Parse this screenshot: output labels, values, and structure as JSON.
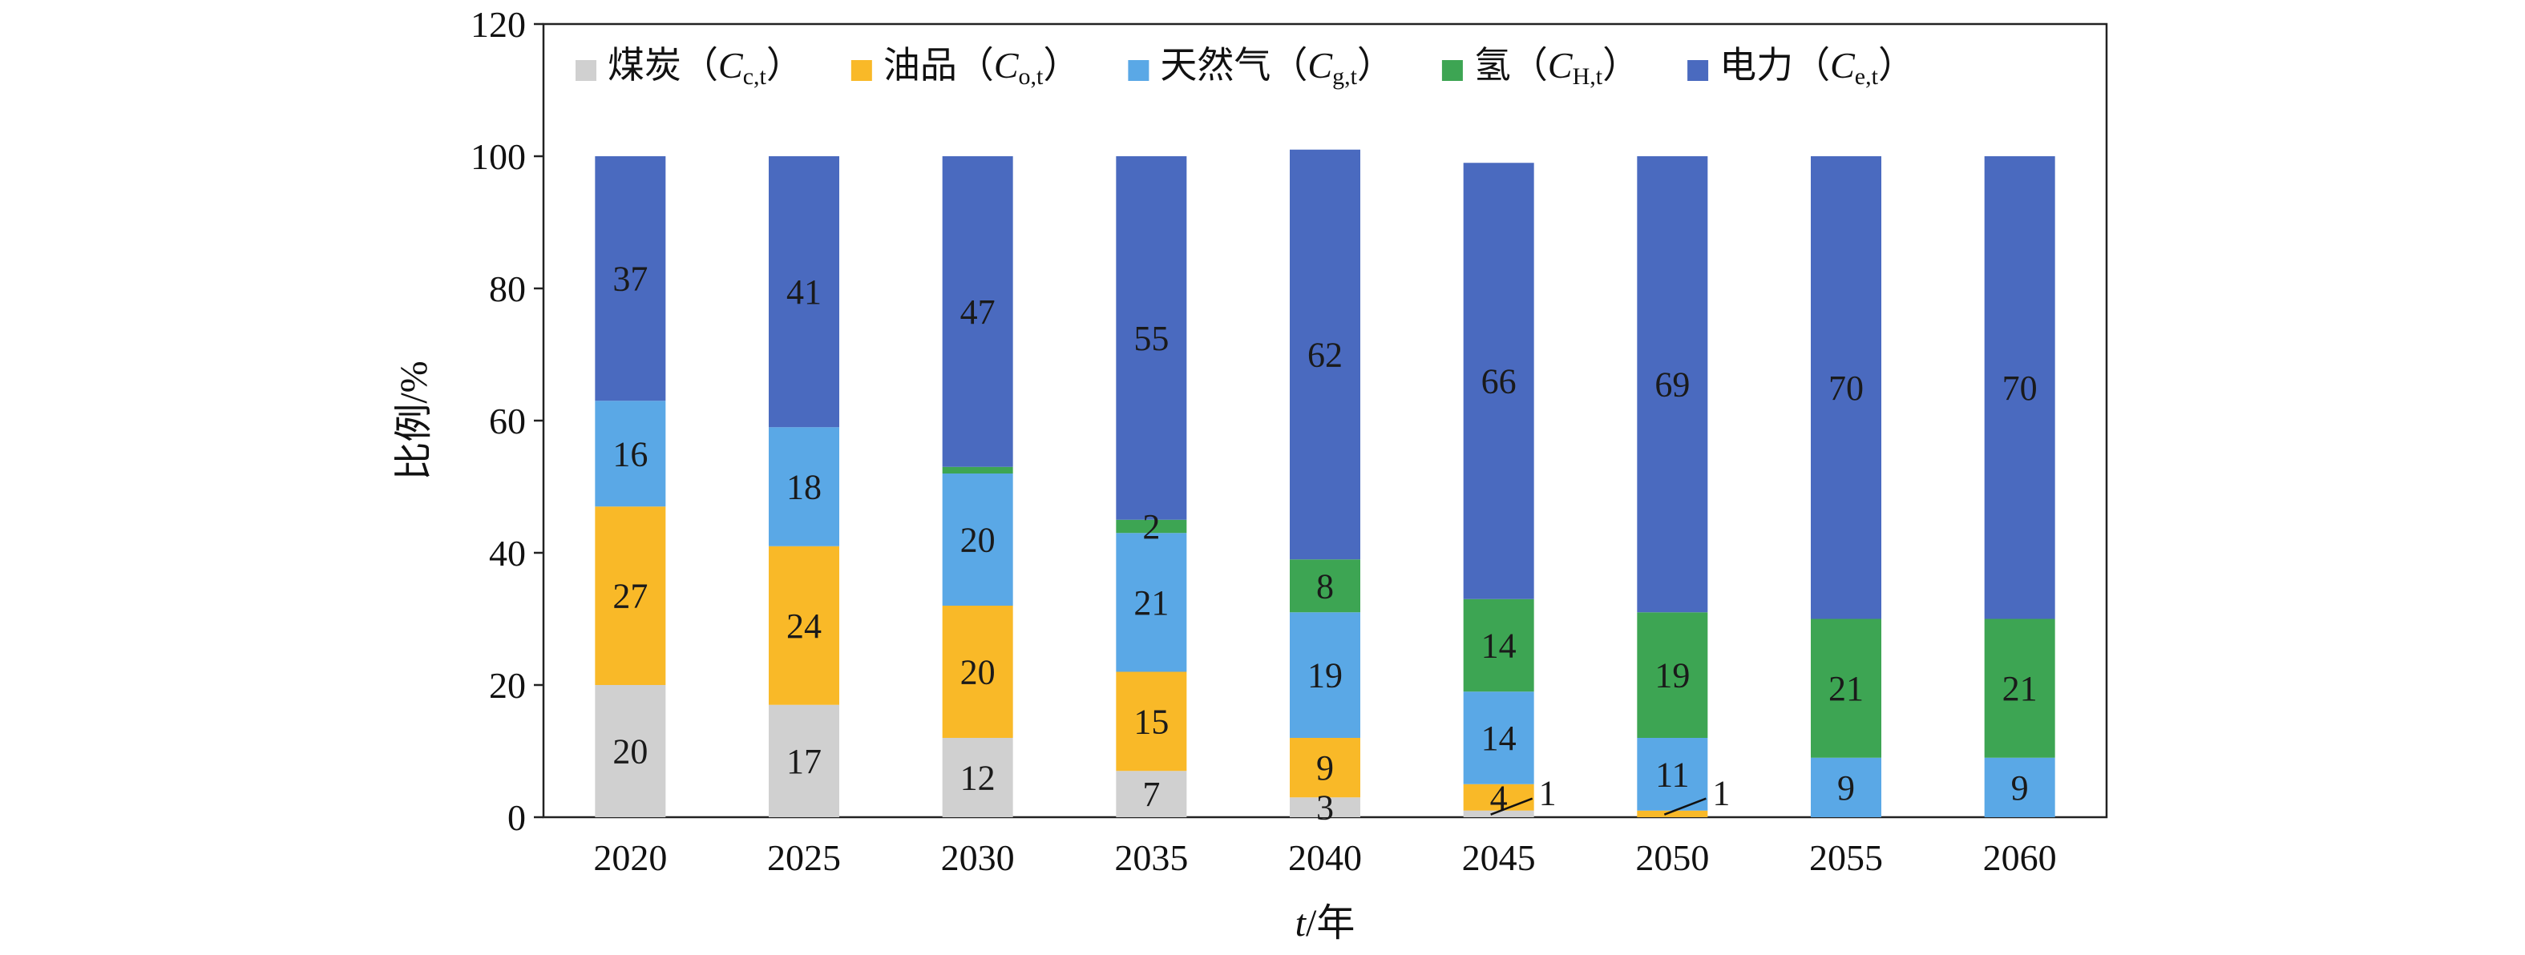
{
  "chart_data": {
    "type": "bar",
    "stacked": true,
    "categories": [
      "2020",
      "2025",
      "2030",
      "2035",
      "2040",
      "2045",
      "2050",
      "2055",
      "2060"
    ],
    "series": [
      {
        "name": "煤炭",
        "symbol": "C",
        "subscript": "c,t",
        "color": "#d0d0d0",
        "values": [
          20,
          17,
          12,
          7,
          3,
          1,
          0,
          0,
          0
        ]
      },
      {
        "name": "油品",
        "symbol": "C",
        "subscript": "o,t",
        "color": "#f9b928",
        "values": [
          27,
          24,
          20,
          15,
          9,
          4,
          1,
          0,
          0
        ]
      },
      {
        "name": "天然气",
        "symbol": "C",
        "subscript": "g,t",
        "color": "#5aa8e6",
        "values": [
          16,
          18,
          20,
          21,
          19,
          14,
          11,
          9,
          9
        ]
      },
      {
        "name": "氢",
        "symbol": "C",
        "subscript": "H,t",
        "color": "#3da553",
        "values": [
          0,
          0,
          1,
          2,
          8,
          14,
          19,
          21,
          21
        ]
      },
      {
        "name": "电力",
        "symbol": "C",
        "subscript": "e,t",
        "color": "#4a6abf",
        "values": [
          37,
          41,
          47,
          55,
          62,
          66,
          69,
          70,
          70
        ]
      }
    ],
    "data_labels": [
      [
        "20",
        "17",
        "12",
        "7",
        "3",
        "",
        "",
        "",
        ""
      ],
      [
        "27",
        "24",
        "20",
        "15",
        "9",
        "4",
        "",
        "",
        ""
      ],
      [
        "16",
        "18",
        "20",
        "21",
        "19",
        "14",
        "11",
        "9",
        "9"
      ],
      [
        "",
        "",
        "",
        "2",
        "8",
        "14",
        "19",
        "21",
        "21"
      ],
      [
        "37",
        "41",
        "47",
        "55",
        "62",
        "66",
        "69",
        "70",
        "70"
      ]
    ],
    "callouts": [
      {
        "category": "2045",
        "label": "1"
      },
      {
        "category": "2050",
        "label": "1"
      }
    ],
    "ylabel": "比例/%",
    "xlabel_var": "t",
    "xlabel_unit": "/年",
    "ylim": [
      0,
      120
    ],
    "yticks": [
      0,
      20,
      40,
      60,
      80,
      100,
      120
    ],
    "legend_position": "top-inside",
    "grid": false
  }
}
